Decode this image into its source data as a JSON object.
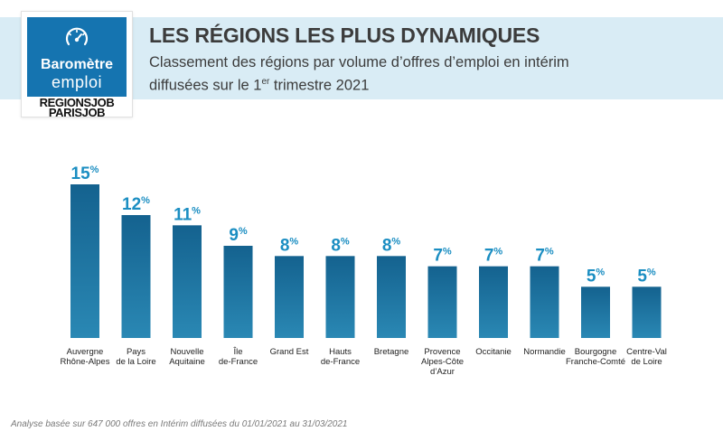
{
  "logo": {
    "line1": "Baromètre",
    "line2": "emploi",
    "brand1": "REGIONSJOB",
    "brand2": "PARISJOB",
    "icon": "gauge-icon",
    "color": "#1574b0"
  },
  "header": {
    "title": "LES RÉGIONS LES PLUS DYNAMIQUES",
    "subtitle_line1": "Classement des régions par volume d’offres d’emploi en intérim",
    "subtitle_line2_pre": "diffusées sur le 1",
    "subtitle_line2_sup": "er",
    "subtitle_line2_post": " trimestre 2021",
    "band_color": "#d9ecf5"
  },
  "chart_data": {
    "type": "bar",
    "unit": "%",
    "categories": [
      [
        "Auvergne",
        "Rhône-Alpes"
      ],
      [
        "Pays",
        "de la Loire"
      ],
      [
        "Nouvelle",
        "Aquitaine"
      ],
      [
        "Île",
        "de-France"
      ],
      [
        "Grand Est"
      ],
      [
        "Hauts",
        "de-France"
      ],
      [
        "Bretagne"
      ],
      [
        "Provence",
        "Alpes-Côte",
        "d’Azur"
      ],
      [
        "Occitanie"
      ],
      [
        "Normandie"
      ],
      [
        "Bourgogne",
        "Franche-Comté"
      ],
      [
        "Centre-Val",
        "de Loire"
      ]
    ],
    "values": [
      15,
      12,
      11,
      9,
      8,
      8,
      8,
      7,
      7,
      7,
      5,
      5
    ],
    "ylim": [
      0,
      15
    ],
    "bar_color_top": "#14628f",
    "bar_color_bottom": "#2a88b4",
    "label_color": "#1b8ec2",
    "grid": false,
    "legend": "none"
  },
  "footnote": "Analyse basée sur 647 000 offres en Intérim diffusées du 01/01/2021 au 31/03/2021"
}
